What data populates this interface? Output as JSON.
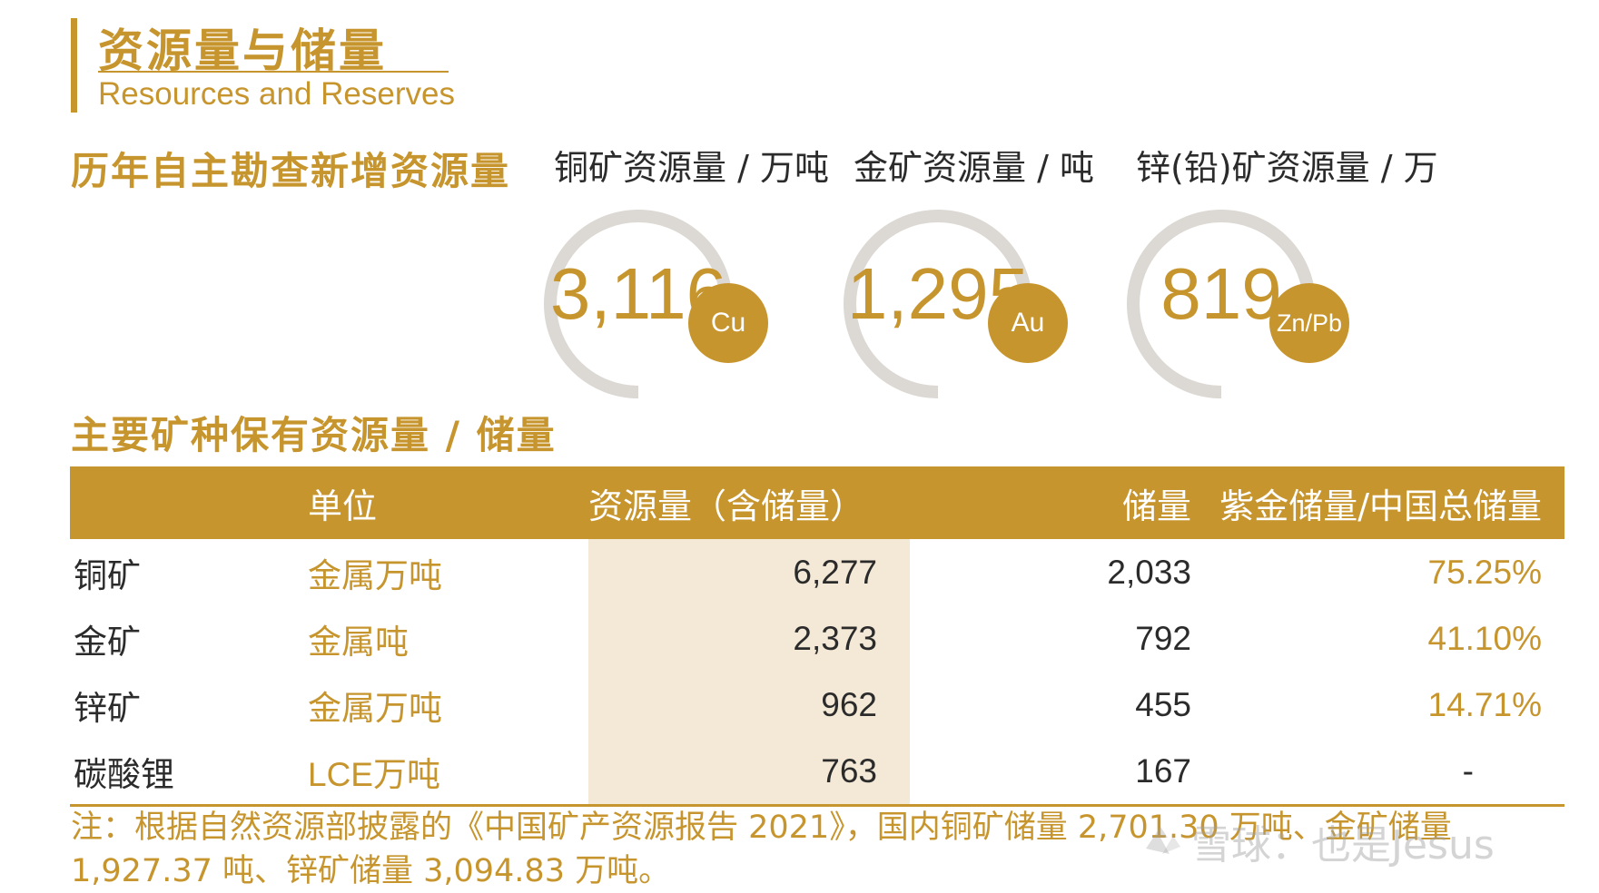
{
  "header": {
    "title_cn": "资源量与储量",
    "title_en": "Resources and Reserves"
  },
  "new_resources": {
    "heading": "历年自主勘查新增资源量",
    "metrics": [
      {
        "label": "铜矿资源量 / 万吨",
        "value": "3,116",
        "badge": "Cu",
        "ring_fill": 0.75
      },
      {
        "label": "金矿资源量 / 吨",
        "value": "1,295",
        "badge": "Au",
        "ring_fill": 0.75
      },
      {
        "label": "锌(铅)矿资源量 / 万",
        "value": "819",
        "badge": "Zn/Pb",
        "ring_fill": 0.75
      }
    ]
  },
  "reserves": {
    "heading": "主要矿种保有资源量 / 储量",
    "columns": [
      "",
      "单位",
      "资源量（含储量）",
      "储量",
      "紫金储量/中国总储量"
    ],
    "rows": [
      {
        "name": "铜矿",
        "unit": "金属万吨",
        "resources": "6,277",
        "reserves": "2,033",
        "share": "75.25%"
      },
      {
        "name": "金矿",
        "unit": "金属吨",
        "resources": "2,373",
        "reserves": "792",
        "share": "41.10%"
      },
      {
        "name": "锌矿",
        "unit": "金属万吨",
        "resources": "962",
        "reserves": "455",
        "share": "14.71%"
      },
      {
        "name": "碳酸锂",
        "unit": "LCE万吨",
        "resources": "763",
        "reserves": "167",
        "share": "-"
      }
    ]
  },
  "note": {
    "line1": "注：根据自然资源部披露的《中国矿产资源报告 2021》，国内铜矿储量 2,701.30 万吨、金矿储量",
    "line2": "1,927.37 吨、锌矿储量 3,094.83 万吨。"
  },
  "watermark": {
    "text": "雪球：也是Jesus"
  },
  "colors": {
    "accent": "#c7952e",
    "ring": "#dcd8d3",
    "highlight": "#f4e9d6",
    "text": "#2b2b2b"
  }
}
